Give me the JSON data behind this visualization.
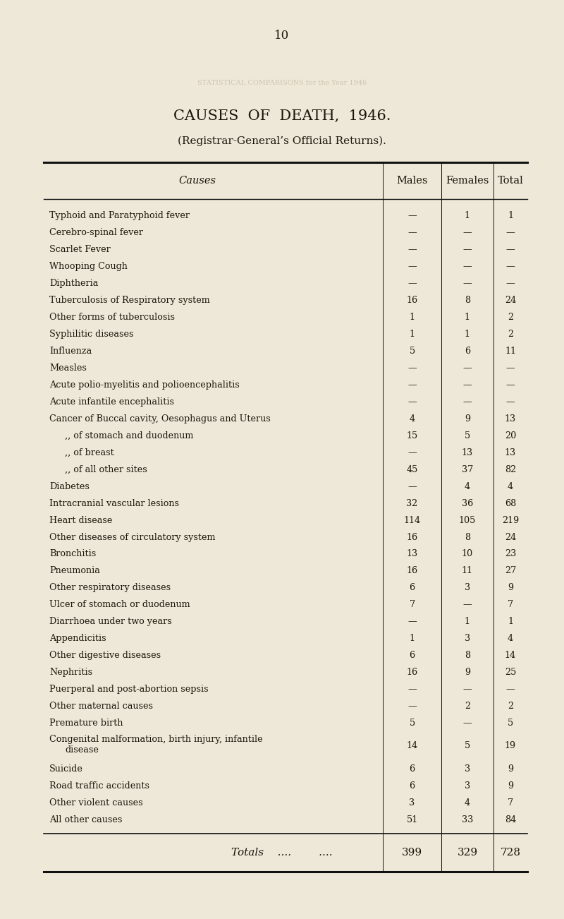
{
  "page_number": "10",
  "title": "CAUSES  OF  DEATH,  1946.",
  "subtitle": "(Registrar-General’s Official Returns).",
  "col_header_cause": "Causes",
  "col_header_males": "Males",
  "col_header_females": "Females",
  "col_header_total": "Total",
  "rows": [
    [
      "Typhoid and Paratyphoid fever",
      "—",
      "1",
      "1"
    ],
    [
      "Cerebro-spinal fever",
      "—",
      "—",
      "—"
    ],
    [
      "Scarlet Fever",
      "—",
      "—",
      "—"
    ],
    [
      "Whooping Cough",
      "—",
      "—",
      "—"
    ],
    [
      "Diphtheria",
      "—",
      "—",
      "—"
    ],
    [
      "Tuberculosis of Respiratory system",
      "16",
      "8",
      "24"
    ],
    [
      "Other forms of tuberculosis",
      "1",
      "1",
      "2"
    ],
    [
      "Syphilitic diseases",
      "1",
      "1",
      "2"
    ],
    [
      "Influenza",
      "5",
      "6",
      "11"
    ],
    [
      "Measles",
      "—",
      "—",
      "—"
    ],
    [
      "Acute polio-myelitis and polioencephalitis",
      "—",
      "—",
      "—"
    ],
    [
      "Acute infantile encephalitis",
      "—",
      "—",
      "—"
    ],
    [
      "Cancer of Buccal cavity, Oesophagus and Uterus",
      "4",
      "9",
      "13"
    ],
    [
      ",, of stomach and duodenum",
      "15",
      "5",
      "20"
    ],
    [
      ",, of breast",
      "—",
      "13",
      "13"
    ],
    [
      ",, of all other sites",
      "45",
      "37",
      "82"
    ],
    [
      "Diabetes",
      "—",
      "4",
      "4"
    ],
    [
      "Intracranial vascular lesions",
      "32",
      "36",
      "68"
    ],
    [
      "Heart disease",
      "114",
      "105",
      "219"
    ],
    [
      "Other diseases of circulatory system",
      "16",
      "8",
      "24"
    ],
    [
      "Bronchitis",
      "13",
      "10",
      "23"
    ],
    [
      "Pneumonia",
      "16",
      "11",
      "27"
    ],
    [
      "Other respiratory diseases",
      "6",
      "3",
      "9"
    ],
    [
      "Ulcer of stomach or duodenum",
      "7",
      "—",
      "7"
    ],
    [
      "Diarrhoea under two years",
      "—",
      "1",
      "1"
    ],
    [
      "Appendicitis",
      "1",
      "3",
      "4"
    ],
    [
      "Other digestive diseases",
      "6",
      "8",
      "14"
    ],
    [
      "Nephritis",
      "16",
      "9",
      "25"
    ],
    [
      "Puerperal and post-abortion sepsis",
      "—",
      "—",
      "—"
    ],
    [
      "Other maternal causes",
      "—",
      "2",
      "2"
    ],
    [
      "Premature birth",
      "5",
      "—",
      "5"
    ],
    [
      "Congenital malformation, birth injury, infantile|    disease",
      "14",
      "5",
      "19"
    ],
    [
      "Suicide",
      "6",
      "3",
      "9"
    ],
    [
      "Road traffic accidents",
      "6",
      "3",
      "9"
    ],
    [
      "Other violent causes",
      "3",
      "4",
      "7"
    ],
    [
      "All other causes",
      "51",
      "33",
      "84"
    ]
  ],
  "totals_label": "Totals    ....        ....",
  "totals_males": "399",
  "totals_females": "329",
  "totals_total": "728",
  "bg_color": "#ede8d8",
  "text_color": "#1a1609",
  "line_color": "#111111",
  "title_fontsize": 15,
  "subtitle_fontsize": 11,
  "header_fontsize": 10.5,
  "row_fontsize": 9.2,
  "totals_fontsize": 11,
  "page_num_fontsize": 12
}
